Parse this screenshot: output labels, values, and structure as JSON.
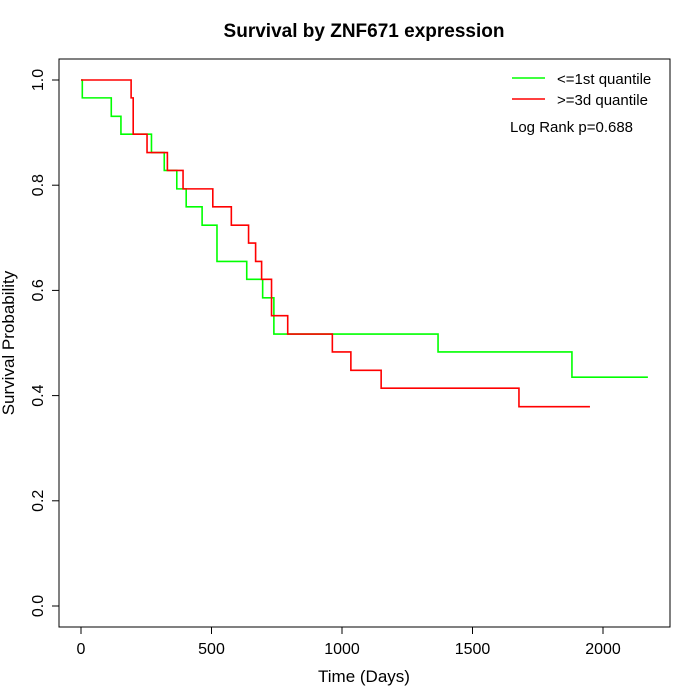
{
  "chart_data": {
    "type": "line",
    "title": "Survival by ZNF671 expression",
    "xlabel": "Time (Days)",
    "ylabel": "Survival Probability",
    "xlim": [
      0,
      2200
    ],
    "ylim": [
      0,
      1
    ],
    "xticks": [
      0,
      500,
      1000,
      1500,
      2000
    ],
    "yticks": [
      0.0,
      0.2,
      0.4,
      0.6,
      0.8,
      1.0
    ],
    "ytick_labels": [
      "0.0",
      "0.2",
      "0.4",
      "0.6",
      "0.8",
      "1.0"
    ],
    "legend_position": "top-right",
    "annotation": "Log Rank p=0.688",
    "series": [
      {
        "name": "<=1st quantile",
        "color": "#00ff00",
        "step": true,
        "x": [
          0,
          5,
          116,
          153,
          270,
          319,
          367,
          403,
          464,
          521,
          635,
          696,
          739,
          1368,
          1881,
          2172
        ],
        "y": [
          1.0,
          0.966,
          0.931,
          0.897,
          0.862,
          0.828,
          0.793,
          0.759,
          0.724,
          0.655,
          0.621,
          0.586,
          0.517,
          0.483,
          0.435,
          0.435
        ]
      },
      {
        "name": ">=3d quantile",
        "color": "#ff0000",
        "step": true,
        "x": [
          0,
          192,
          200,
          253,
          331,
          391,
          505,
          576,
          642,
          669,
          692,
          730,
          792,
          963,
          1034,
          1150,
          1678,
          1950
        ],
        "y": [
          1.0,
          0.966,
          0.897,
          0.862,
          0.828,
          0.793,
          0.759,
          0.724,
          0.69,
          0.655,
          0.621,
          0.552,
          0.517,
          0.483,
          0.448,
          0.414,
          0.379,
          0.379
        ]
      }
    ]
  }
}
